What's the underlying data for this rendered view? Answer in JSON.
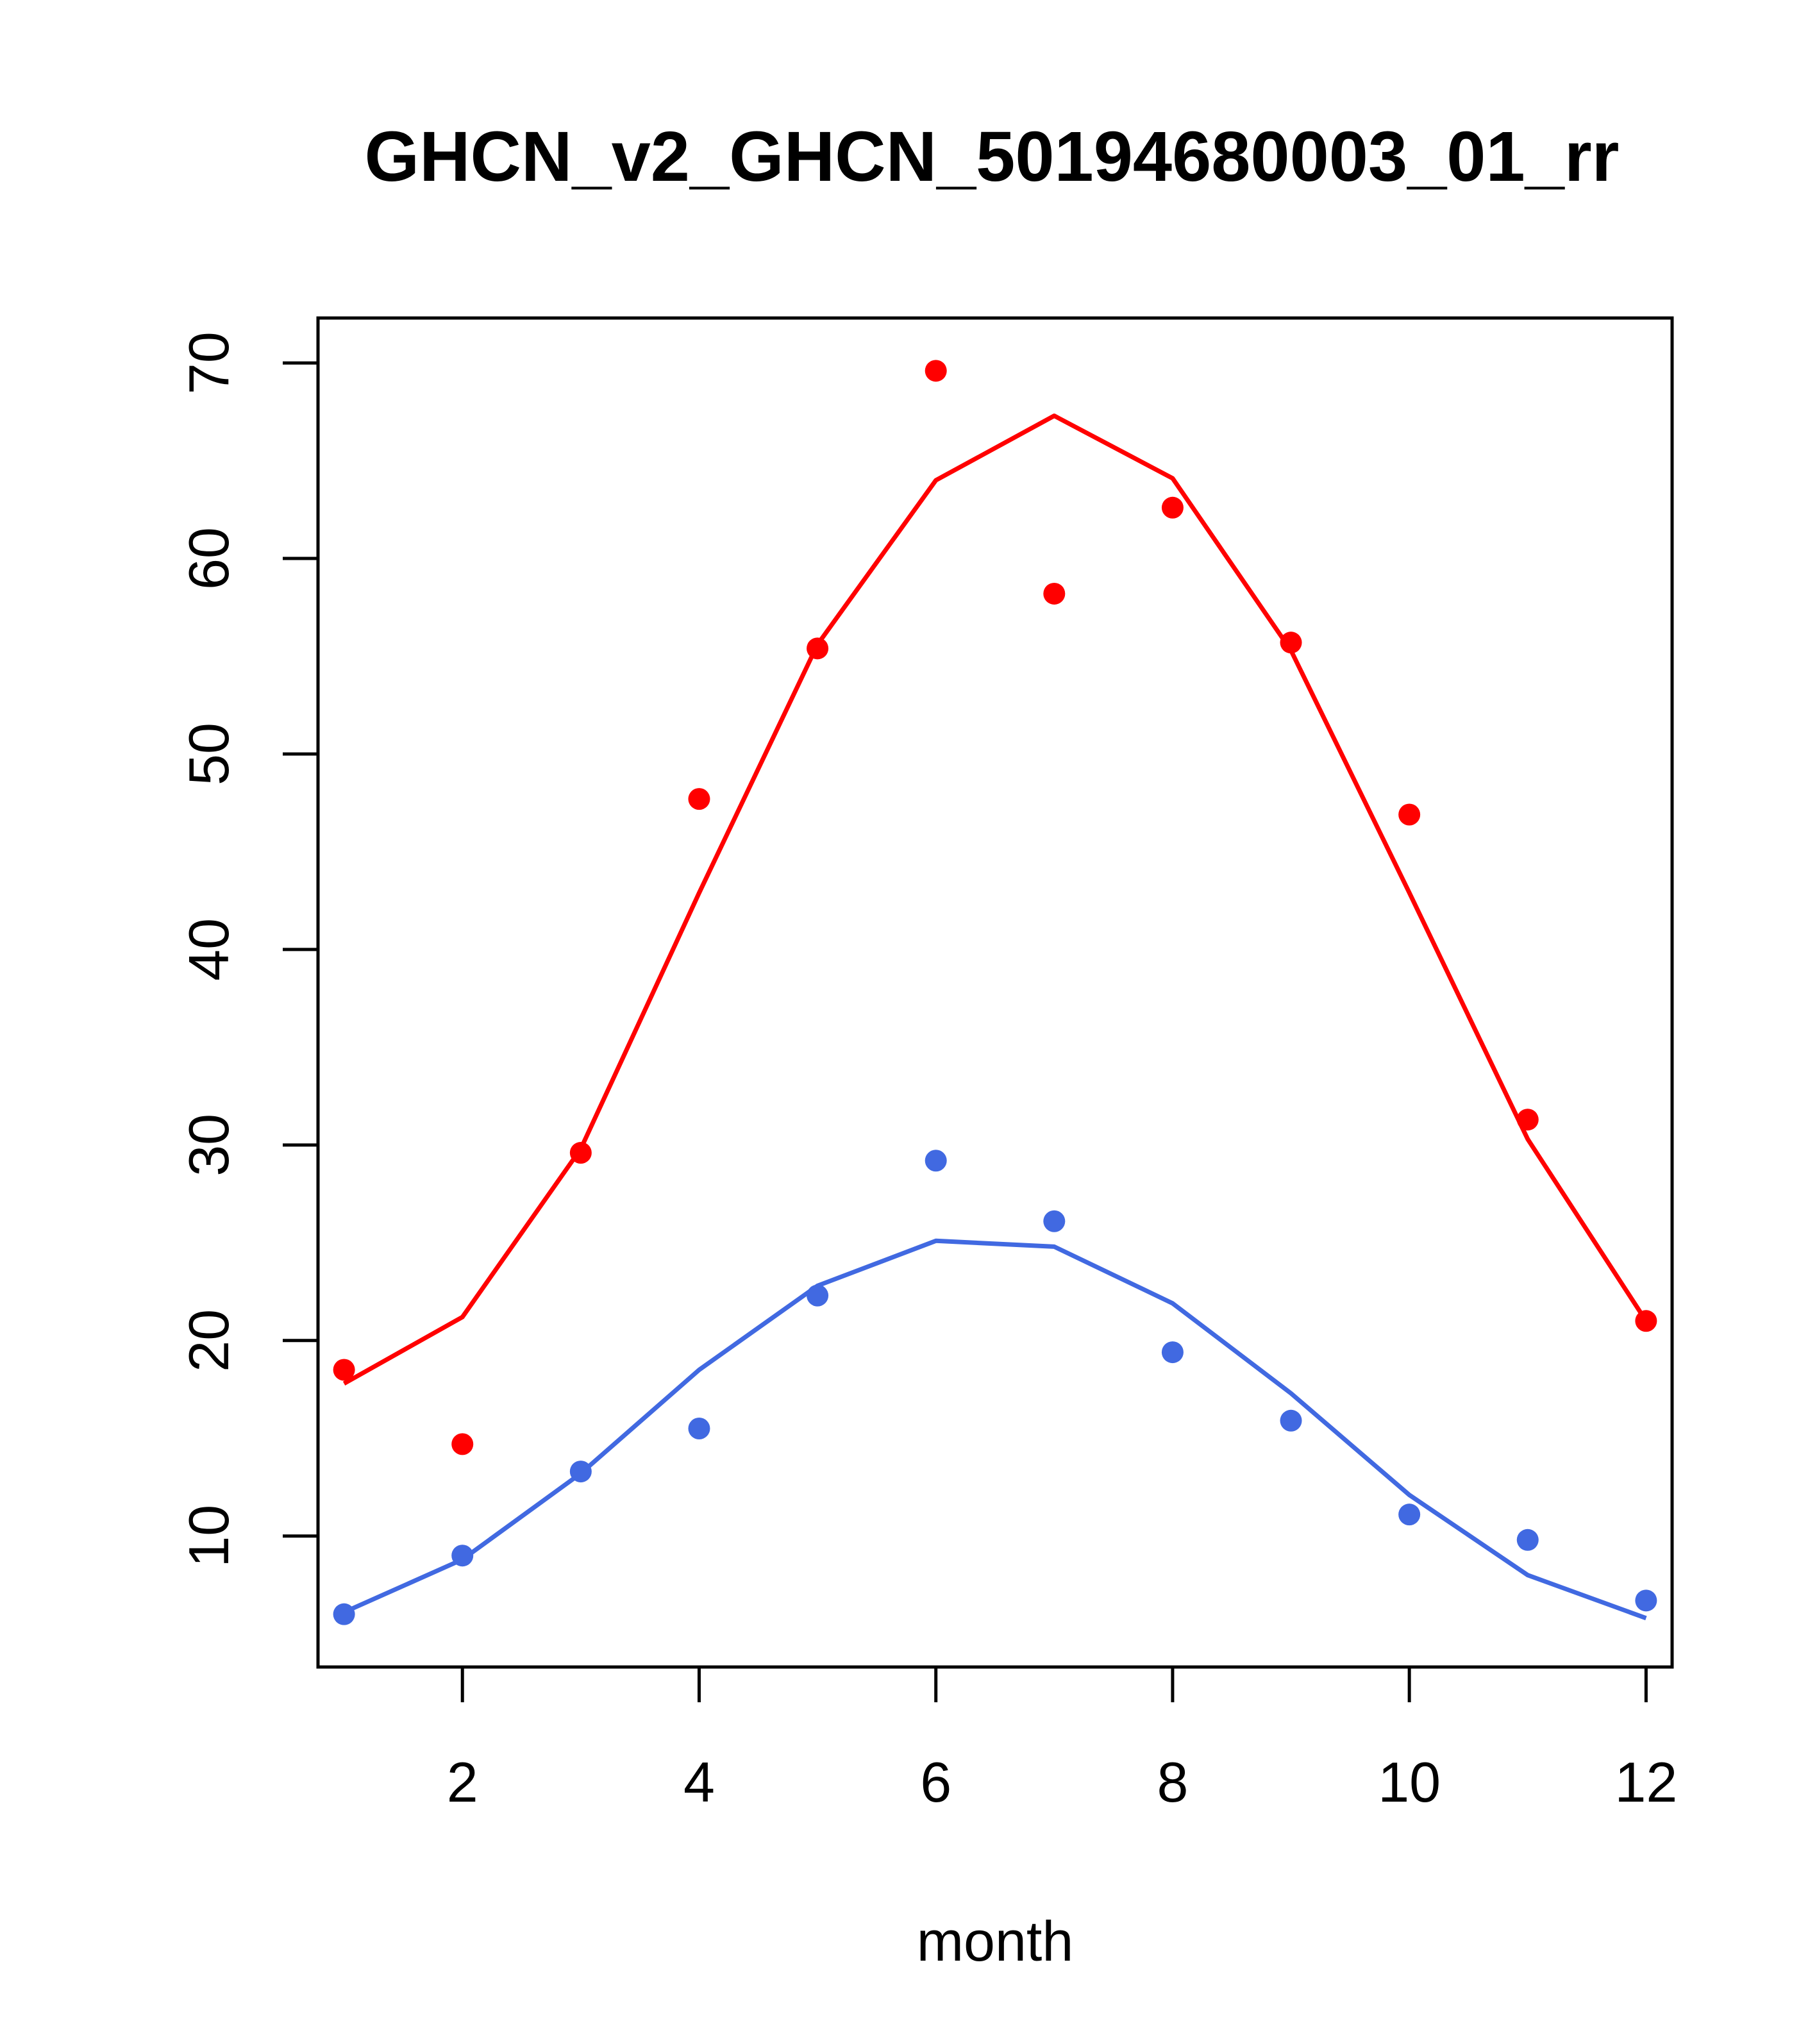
{
  "chart_data": {
    "type": "scatter",
    "title": "GHCN_v2_GHCN_50194680003_01_rr",
    "xlabel": "month",
    "ylabel": "",
    "xlim": [
      0.78,
      12.22
    ],
    "ylim": [
      3.3,
      72.3
    ],
    "xticks": [
      2,
      4,
      6,
      8,
      10,
      12
    ],
    "yticks": [
      10,
      20,
      30,
      40,
      50,
      60,
      70
    ],
    "grid": false,
    "legend": "none",
    "series": [
      {
        "color": "#ff0000",
        "points_x": [
          1,
          2,
          3,
          4,
          5,
          6,
          7,
          8,
          9,
          10,
          11,
          12
        ],
        "points_y": [
          18.5,
          14.7,
          29.6,
          47.7,
          55.4,
          69.6,
          58.2,
          62.6,
          55.7,
          46.9,
          31.3,
          21.0
        ],
        "line_x": [
          1,
          2,
          3,
          4,
          5,
          6,
          7,
          8,
          9,
          10,
          11,
          12
        ],
        "line_y": [
          17.8,
          21.2,
          29.8,
          42.9,
          55.6,
          64.0,
          67.3,
          64.1,
          55.3,
          42.9,
          30.3,
          21.0
        ]
      },
      {
        "color": "#4169e1",
        "points_x": [
          1,
          2,
          3,
          4,
          5,
          6,
          7,
          8,
          9,
          10,
          11,
          12
        ],
        "points_y": [
          6.0,
          9.0,
          13.3,
          15.5,
          22.3,
          29.2,
          26.1,
          19.4,
          15.9,
          11.1,
          9.8,
          6.7
        ],
        "line_x": [
          1,
          2,
          3,
          4,
          5,
          6,
          7,
          8,
          9,
          10,
          11,
          12
        ],
        "line_y": [
          6.1,
          8.8,
          13.2,
          18.5,
          22.8,
          25.1,
          24.8,
          21.9,
          17.3,
          12.1,
          8.0,
          5.8
        ]
      }
    ]
  }
}
